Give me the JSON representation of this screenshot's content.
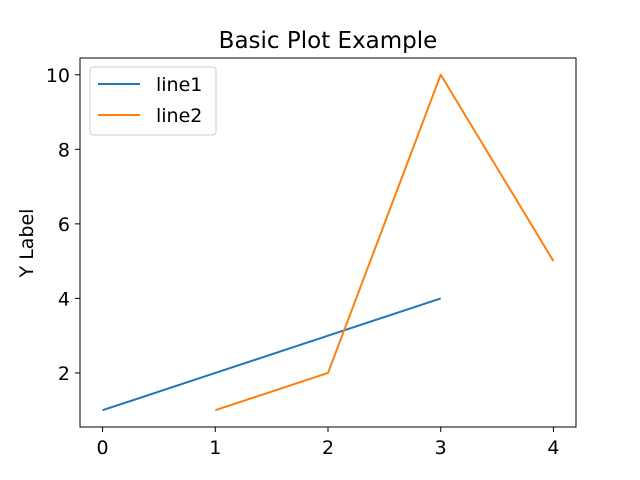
{
  "chart_data": {
    "type": "line",
    "title": "Basic Plot Example",
    "xlabel": "",
    "ylabel": "Y Label",
    "xlim": [
      -0.2,
      4.2
    ],
    "ylim": [
      0.55,
      10.45
    ],
    "xticks": [
      0,
      1,
      2,
      3,
      4
    ],
    "yticks": [
      2,
      4,
      6,
      8,
      10
    ],
    "grid": false,
    "legend": "top-left",
    "series": [
      {
        "name": "line1",
        "color": "#1f77b4",
        "x": [
          0,
          1,
          2,
          3
        ],
        "y": [
          1,
          2,
          3,
          4
        ]
      },
      {
        "name": "line2",
        "color": "#ff7f0e",
        "x": [
          1,
          2,
          3,
          4
        ],
        "y": [
          1,
          2,
          10,
          5
        ]
      }
    ]
  }
}
